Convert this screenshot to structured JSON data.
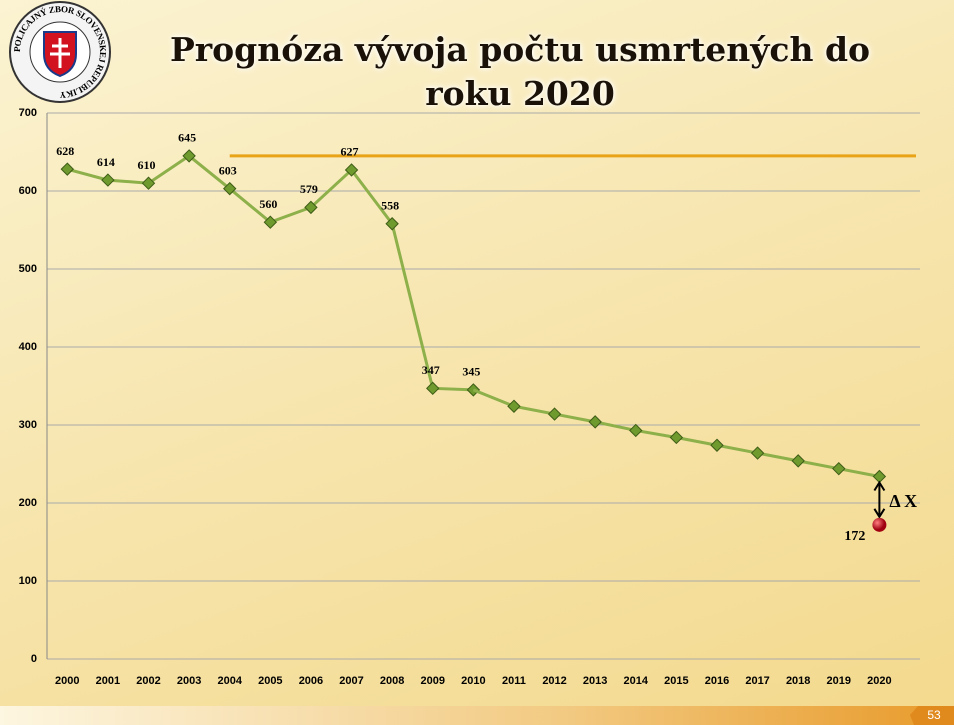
{
  "slide": {
    "title": "Prognóza vývoja počtu usmrtených do roku 2020",
    "page_number": "53",
    "logo_text": "POLICAJNÝ ZBOR SLOVENSKEJ REPUBLIKY"
  },
  "chart_data": {
    "type": "line",
    "x": [
      2000,
      2001,
      2002,
      2003,
      2004,
      2005,
      2006,
      2007,
      2008,
      2009,
      2010,
      2011,
      2012,
      2013,
      2014,
      2015,
      2016,
      2017,
      2018,
      2019,
      2020
    ],
    "series": [
      {
        "color": "#8db04a",
        "labels": true,
        "values": [
          628,
          614,
          610,
          645,
          603,
          560,
          579,
          627,
          558,
          347,
          345,
          null,
          null,
          null,
          null,
          null,
          null,
          null,
          null,
          null,
          null
        ]
      },
      {
        "color": "#8db04a",
        "labels": false,
        "values": [
          null,
          null,
          null,
          null,
          null,
          null,
          null,
          null,
          null,
          null,
          null,
          324,
          314,
          304,
          293,
          284,
          274,
          264,
          254,
          244,
          234
        ]
      }
    ],
    "target": {
      "x": 2020,
      "value": 172,
      "color": "#c0181e",
      "annotation": "Δ X"
    },
    "reference_line": {
      "value": 645,
      "start": 2004,
      "color": "#e8a317"
    },
    "xlim": [
      1999.5,
      2021
    ],
    "ylim": [
      0,
      700
    ],
    "yticks": [
      0,
      100,
      200,
      300,
      400,
      500,
      600,
      700
    ],
    "grid": true
  }
}
